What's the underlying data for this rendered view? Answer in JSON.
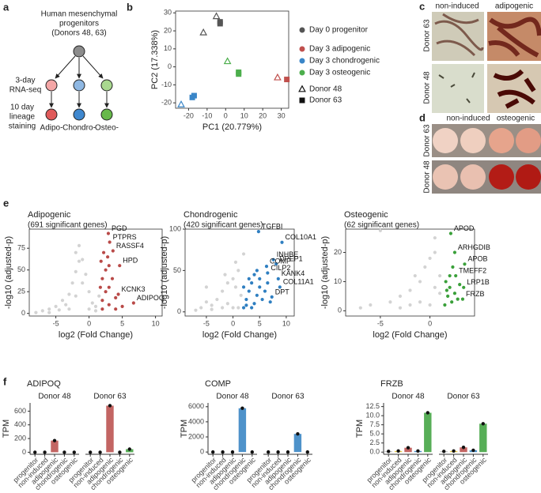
{
  "panel_labels": [
    "a",
    "b",
    "c",
    "d",
    "e",
    "f"
  ],
  "diagram": {
    "title_lines": [
      "Human mesenchymal",
      "progenitors",
      "(Donors 48, 63)"
    ],
    "rnaseq_label": [
      "3-day",
      "RNA-seq"
    ],
    "staining_label": [
      "10 day",
      "lineage",
      "staining"
    ],
    "lineages": [
      "Adipo-",
      "Chondro-",
      "Osteo-"
    ]
  },
  "images": {
    "c": {
      "columns": [
        "non-induced",
        "adipogenic"
      ],
      "rows": [
        "Donor 63",
        "Donor 48"
      ]
    },
    "d": {
      "columns": [
        "non-induced",
        "osteogenic"
      ],
      "rows": [
        "Donor 63",
        "Donor 48"
      ]
    }
  },
  "chart_data": [
    {
      "type": "scatter",
      "xlabel": "PC1 (20.779%)",
      "ylabel": "PC2 (17.338%)",
      "xlim": [
        -27,
        34
      ],
      "ylim": [
        -23,
        31
      ],
      "xticks": [
        -20,
        -10,
        0,
        10,
        20,
        30
      ],
      "yticks": [
        -20,
        -10,
        0,
        10,
        20,
        30
      ],
      "series": [
        {
          "name": "Day 0 progenitor",
          "color": "#555555",
          "x": [
            -5,
            -12,
            -3,
            -3
          ],
          "values": [
            28,
            19,
            25,
            24
          ],
          "markers": [
            "triangle",
            "triangle",
            "square",
            "square"
          ]
        },
        {
          "name": "Day 3 adipogenic",
          "color": "#c0504d",
          "x": [
            28,
            33
          ],
          "values": [
            -6,
            -7
          ],
          "markers": [
            "triangle",
            "square"
          ]
        },
        {
          "name": "Day 3 chondrogenic",
          "color": "#3a86c8",
          "x": [
            -24,
            -18,
            -17
          ],
          "values": [
            -21,
            -17,
            -16
          ],
          "markers": [
            "triangle",
            "square",
            "square"
          ]
        },
        {
          "name": "Day 3 osteogenic",
          "color": "#4cae4c",
          "x": [
            1,
            7,
            7
          ],
          "values": [
            3,
            -3,
            -4
          ],
          "markers": [
            "triangle",
            "square",
            "square"
          ]
        }
      ],
      "shape_legend": [
        {
          "name": "Donor 48",
          "marker": "triangle"
        },
        {
          "name": "Donor 63",
          "marker": "square"
        }
      ]
    },
    {
      "type": "scatter",
      "title": "Adipogenic",
      "subtitle": "(691 significant genes)",
      "xlabel": "log2 (Fold Change)",
      "ylabel": "-log10 (adjusted-p)",
      "xlim": [
        -9,
        11
      ],
      "ylim": [
        -3,
        97
      ],
      "xticks": [
        -5,
        0,
        5,
        10
      ],
      "yticks": [
        0,
        25,
        50,
        75
      ],
      "series": [
        {
          "color": "#d3d3d3",
          "x": [
            -7,
            -6,
            -5,
            -4,
            -3,
            -2.5,
            -2,
            -1.5,
            -1,
            -0.5,
            0,
            0.5,
            1,
            1.5,
            -3.5,
            -2,
            -1,
            0,
            -4.5,
            -1.5,
            -6,
            1,
            -2,
            -3,
            -8
          ],
          "values": [
            3,
            5,
            8,
            15,
            22,
            35,
            48,
            60,
            62,
            45,
            25,
            12,
            8,
            20,
            10,
            20,
            35,
            5,
            4,
            78,
            1,
            3,
            70,
            5,
            1
          ]
        },
        {
          "color": "#b94a48",
          "x": [
            2,
            2.5,
            3,
            2,
            2.5,
            3,
            4,
            1.8,
            2.2,
            3.5,
            5,
            4,
            2,
            1.7,
            3,
            2.8
          ],
          "values": [
            15,
            25,
            30,
            40,
            50,
            10,
            18,
            60,
            70,
            40,
            8,
            5,
            5,
            30,
            55,
            65
          ]
        },
        {
          "color": "#b94a48",
          "x": [
            2.9,
            3.1,
            3.6,
            4.6,
            4.4,
            6.7
          ],
          "values": [
            92,
            82,
            72,
            55,
            22,
            12
          ],
          "point_labels": [
            "PGD",
            "PTPRS",
            "RASSF4",
            "HPD",
            "KCNK3",
            "ADIPOQ"
          ]
        }
      ]
    },
    {
      "type": "scatter",
      "title": "Chondrogenic",
      "subtitle": "(420 significant genes)",
      "xlabel": "log2 (Fold Change)",
      "ylabel": "-log10 (adjusted-p)",
      "xlim": [
        -9,
        11.5
      ],
      "ylim": [
        -5,
        100
      ],
      "xticks": [
        -5,
        0,
        5,
        10
      ],
      "yticks": [
        0,
        50,
        100
      ],
      "series": [
        {
          "color": "#d3d3d3",
          "x": [
            -7,
            -6,
            -5,
            -5,
            -4,
            -3,
            -2,
            -1,
            0,
            0.5,
            1,
            1.5,
            -2,
            -1,
            0,
            1,
            2,
            -1.5,
            0.5,
            -4
          ],
          "values": [
            2,
            5,
            12,
            30,
            8,
            15,
            25,
            35,
            40,
            30,
            50,
            20,
            5,
            10,
            5,
            5,
            70,
            45,
            60,
            3
          ]
        },
        {
          "color": "#2f7fc1",
          "x": [
            2,
            2.5,
            3,
            3.5,
            4,
            4.5,
            5,
            3,
            4,
            5.5,
            6,
            2.5,
            3.5,
            4.5,
            5,
            6.5,
            2,
            7
          ],
          "values": [
            5,
            15,
            25,
            35,
            10,
            20,
            30,
            40,
            45,
            15,
            25,
            8,
            5,
            50,
            40,
            35,
            30,
            12
          ]
        },
        {
          "color": "#2f7fc1",
          "x": [
            4.8,
            9.2,
            7.6,
            8.1,
            6.3,
            6.5,
            8.5,
            8.8,
            7.3
          ],
          "values": [
            97,
            84,
            63,
            58,
            55,
            47,
            40,
            30,
            18
          ],
          "point_labels": [
            "TGFBI",
            "COL10A1",
            "INHBE",
            "DPEP1",
            "COMP",
            "CILP2",
            "KANK4",
            "COL11A1",
            "DPT"
          ]
        }
      ]
    },
    {
      "type": "scatter",
      "title": "Osteogenic",
      "subtitle": "(62 significant genes)",
      "xlabel": "log2 (Fold Change)",
      "ylabel": "-log10 (adjusted-p)",
      "xlim": [
        -8.5,
        4.5
      ],
      "ylim": [
        -1.8,
        28
      ],
      "xticks": [
        -5,
        0
      ],
      "yticks": [
        0,
        10,
        20
      ],
      "series": [
        {
          "color": "#d3d3d3",
          "x": [
            -7,
            -6,
            -5,
            -4,
            -3,
            -2,
            -1.5,
            -1,
            -0.5,
            0,
            0.5,
            0.5,
            -1,
            0,
            1,
            -2,
            1,
            -3,
            0.5
          ],
          "values": [
            1,
            2,
            27.5,
            3,
            5,
            7,
            12,
            10,
            15,
            18,
            20,
            8,
            3,
            2,
            6,
            2,
            12,
            1,
            25
          ]
        },
        {
          "color": "#3aa03a",
          "x": [
            1.5,
            1.8,
            2,
            2.2,
            2.5,
            1.6,
            2,
            2.8,
            2.3,
            1.7,
            3
          ],
          "values": [
            2,
            5,
            8,
            3,
            6,
            10,
            12,
            4,
            15,
            7,
            9
          ]
        },
        {
          "color": "#3aa03a",
          "x": [
            2.1,
            2.5,
            3.5,
            2.6,
            3.4,
            3.3
          ],
          "values": [
            26.5,
            20,
            16,
            12,
            8,
            4
          ],
          "point_labels": [
            "APOD",
            "ARHGDIB",
            "APOB",
            "TMEFF2",
            "LRP1B",
            "FRZB"
          ]
        }
      ]
    },
    {
      "type": "bar",
      "title": "ADIPOQ",
      "ylabel": "TPM",
      "ylim": [
        -30,
        720
      ],
      "yticks": [
        0,
        200,
        400,
        600
      ],
      "colors": [
        "#9e9e9e",
        "#e6c229",
        "#b94a48",
        "#2f7fc1",
        "#3aa03a"
      ],
      "facets": [
        {
          "title": "Donor 48",
          "categories": [
            "progenitor",
            "non-induced",
            "adipogenic",
            "chondrogenic",
            "osteogenic"
          ],
          "values": [
            0,
            0,
            170,
            0,
            0
          ]
        },
        {
          "title": "Donor 63",
          "categories": [
            "progenitor",
            "non-induced",
            "adipogenic",
            "chondrogenic",
            "osteogenic"
          ],
          "values": [
            0,
            0,
            680,
            0,
            45
          ]
        }
      ]
    },
    {
      "type": "bar",
      "title": "COMP",
      "ylabel": "TPM",
      "ylim": [
        -300,
        6500
      ],
      "yticks": [
        0,
        2000,
        4000,
        6000
      ],
      "colors": [
        "#9e9e9e",
        "#e6c229",
        "#b94a48",
        "#2f7fc1",
        "#3aa03a"
      ],
      "facets": [
        {
          "title": "Donor 48",
          "categories": [
            "progenitor",
            "non-induced",
            "adipogenic",
            "chondrogenic",
            "osteogenic"
          ],
          "values": [
            0,
            0,
            0,
            5800,
            0
          ]
        },
        {
          "title": "Donor 63",
          "categories": [
            "progenitor",
            "non-induced",
            "adipogenic",
            "chondrogenic",
            "osteogenic"
          ],
          "values": [
            0,
            0,
            0,
            2400,
            0
          ]
        }
      ]
    },
    {
      "type": "bar",
      "title": "FRZB",
      "ylabel": "TPM",
      "ylim": [
        -0.6,
        13.5
      ],
      "yticks": [
        {
          "value": 0,
          "label": "0.0"
        },
        {
          "value": 2.5,
          "label": "2.5"
        },
        {
          "value": 5,
          "label": "5.0"
        },
        {
          "value": 7.5,
          "label": "7.5"
        },
        {
          "value": 10,
          "label": "10.0"
        },
        {
          "value": 12.5,
          "label": "12.5"
        }
      ],
      "colors": [
        "#9e9e9e",
        "#e6c229",
        "#b94a48",
        "#2f7fc1",
        "#3aa03a"
      ],
      "facets": [
        {
          "title": "Donor 48",
          "categories": [
            "progenitor",
            "non-induced",
            "adipogenic",
            "chondrogenic",
            "osteogenic"
          ],
          "values": [
            0.2,
            0.3,
            1.2,
            0.3,
            10.8
          ]
        },
        {
          "title": "Donor 63",
          "categories": [
            "progenitor",
            "non-induced",
            "adipogenic",
            "chondrogenic",
            "osteogenic"
          ],
          "values": [
            0.2,
            0.3,
            1.3,
            0.5,
            7.8
          ]
        }
      ]
    }
  ]
}
